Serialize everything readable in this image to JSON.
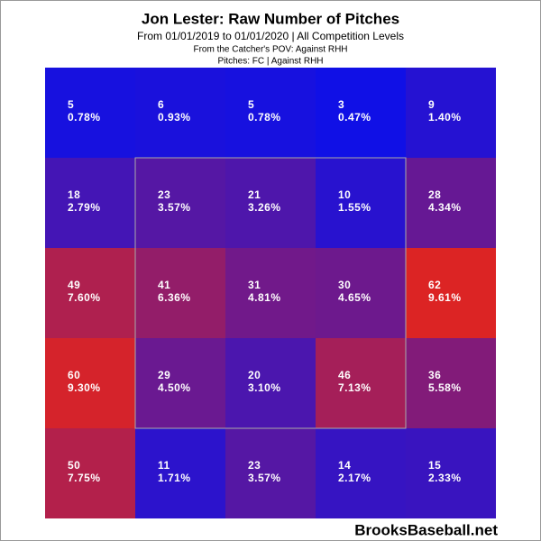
{
  "chart_data": {
    "type": "heatmap",
    "title": "Jon Lester: Raw Number of Pitches",
    "subtitle": "From 01/01/2019 to 01/01/2020  |  All Competition Levels",
    "notes": [
      "From the Catcher's POV:  Against RHH",
      "Pitches:  FC  |  Against RHH"
    ],
    "watermark": "BrooksBaseball.net",
    "color_low": "#1010e6",
    "color_high": "#dc2424",
    "strike_zone": true,
    "rows": [
      {
        "values": [
          5,
          6,
          5,
          3,
          9
        ],
        "percents": [
          0.78,
          0.93,
          0.78,
          0.47,
          1.4
        ],
        "percent_labels": [
          "0.78%",
          "0.93%",
          "0.78%",
          "0.47%",
          "1.40%"
        ]
      },
      {
        "values": [
          18,
          23,
          21,
          10,
          28
        ],
        "percents": [
          2.79,
          3.57,
          3.26,
          1.55,
          4.34
        ],
        "percent_labels": [
          "2.79%",
          "3.57%",
          "3.26%",
          "1.55%",
          "4.34%"
        ]
      },
      {
        "values": [
          49,
          41,
          31,
          30,
          62
        ],
        "percents": [
          7.6,
          6.36,
          4.81,
          4.65,
          9.61
        ],
        "percent_labels": [
          "7.60%",
          "6.36%",
          "4.81%",
          "4.65%",
          "9.61%"
        ]
      },
      {
        "values": [
          60,
          29,
          20,
          46,
          36
        ],
        "percents": [
          9.3,
          4.5,
          3.1,
          7.13,
          5.58
        ],
        "percent_labels": [
          "9.30%",
          "4.50%",
          "3.10%",
          "7.13%",
          "5.58%"
        ]
      },
      {
        "values": [
          50,
          11,
          23,
          14,
          15
        ],
        "percents": [
          7.75,
          1.71,
          3.57,
          2.17,
          2.33
        ],
        "percent_labels": [
          "7.75%",
          "1.71%",
          "3.57%",
          "2.17%",
          "2.33%"
        ]
      }
    ]
  }
}
